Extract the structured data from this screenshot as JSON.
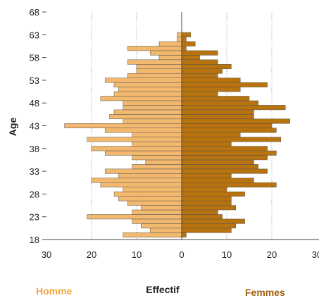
{
  "chart_data": {
    "type": "bar",
    "orientation": "horizontal",
    "subtype": "population-pyramid",
    "ylabel": "Age",
    "xlabel": "Effectif",
    "ages": [
      18,
      19,
      20,
      21,
      22,
      23,
      24,
      25,
      26,
      27,
      28,
      29,
      30,
      31,
      32,
      33,
      34,
      35,
      36,
      37,
      38,
      39,
      40,
      41,
      42,
      43,
      44,
      45,
      46,
      47,
      48,
      49,
      50,
      51,
      52,
      53,
      54,
      55,
      56,
      57,
      58,
      59,
      60,
      61,
      62,
      63,
      64,
      65,
      66,
      67,
      68
    ],
    "series": [
      {
        "name": "Homme",
        "side": "left",
        "color": "#F2B86E",
        "values": [
          0,
          13,
          7,
          9,
          11,
          21,
          11,
          9,
          12,
          14,
          15,
          13,
          18,
          20,
          14,
          17,
          11,
          8,
          11,
          17,
          20,
          11,
          21,
          11,
          17,
          26,
          13,
          16,
          15,
          13,
          13,
          18,
          15,
          14,
          15,
          17,
          12,
          10,
          10,
          12,
          5,
          7,
          12,
          5,
          1,
          1,
          0,
          0,
          0,
          0,
          0
        ]
      },
      {
        "name": "Femmes",
        "side": "right",
        "color": "#B8720E",
        "values": [
          0,
          1,
          11,
          12,
          14,
          9,
          8,
          12,
          11,
          11,
          14,
          10,
          21,
          16,
          11,
          19,
          17,
          16,
          19,
          21,
          19,
          11,
          22,
          13,
          21,
          20,
          24,
          16,
          16,
          23,
          17,
          15,
          8,
          13,
          19,
          13,
          8,
          9,
          11,
          8,
          4,
          8,
          1,
          3,
          1,
          2,
          0,
          0,
          0,
          0,
          0
        ]
      }
    ],
    "xlim": [
      -30,
      30
    ],
    "ylim": [
      18,
      68
    ],
    "x_ticks": [
      "30",
      "20",
      "10",
      "0",
      "10",
      "20",
      "30"
    ],
    "y_ticks": [
      18,
      23,
      28,
      33,
      38,
      43,
      48,
      53,
      58,
      63,
      68
    ],
    "grid": "vertical-dotted",
    "legend": "bottom"
  },
  "legend": {
    "left_label": "Homme",
    "left_color": "#F2A63A",
    "right_label": "Femmes",
    "right_color": "#A0600E"
  }
}
